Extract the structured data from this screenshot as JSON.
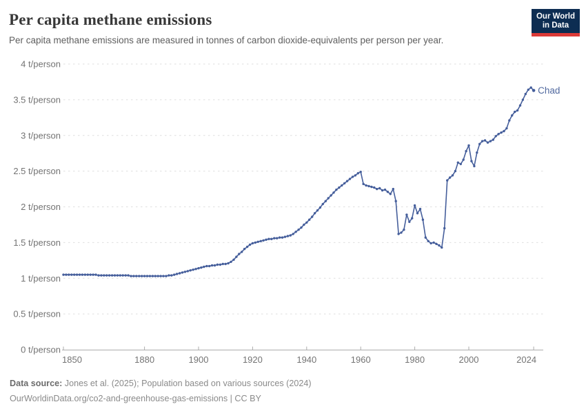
{
  "header": {
    "title": "Per capita methane emissions",
    "subtitle": "Per capita methane emissions are measured in tonnes of carbon dioxide-equivalents per person per year.",
    "logo": {
      "line1": "Our World",
      "line2": "in Data",
      "bg_color": "#0d2d52",
      "bar_color": "#dc3a37"
    }
  },
  "footer": {
    "source_label": "Data source:",
    "source_text": " Jones et al. (2025); Population based on various sources (2024)",
    "url_line": "OurWorldinData.org/co2-and-greenhouse-gas-emissions | CC BY"
  },
  "chart_data": {
    "type": "line",
    "title": "Per capita methane emissions",
    "unit": "t/person",
    "xlabel": "",
    "ylabel": "t/person",
    "xlim": [
      1850,
      2024
    ],
    "ylim": [
      0,
      4
    ],
    "grid": "horizontal dashed",
    "legend_position": "end-of-line label",
    "line_color": "#455e9b",
    "end_label_color": "#51699f",
    "yticks": [
      {
        "value": 0,
        "label": "0 t/person"
      },
      {
        "value": 0.5,
        "label": "0.5 t/person"
      },
      {
        "value": 1,
        "label": "1 t/person"
      },
      {
        "value": 1.5,
        "label": "1.5 t/person"
      },
      {
        "value": 2,
        "label": "2 t/person"
      },
      {
        "value": 2.5,
        "label": "2.5 t/person"
      },
      {
        "value": 3,
        "label": "3 t/person"
      },
      {
        "value": 3.5,
        "label": "3.5 t/person"
      },
      {
        "value": 4,
        "label": "4 t/person"
      }
    ],
    "xticks": [
      {
        "value": 1850,
        "label": "1850"
      },
      {
        "value": 1880,
        "label": "1880"
      },
      {
        "value": 1900,
        "label": "1900"
      },
      {
        "value": 1920,
        "label": "1920"
      },
      {
        "value": 1940,
        "label": "1940"
      },
      {
        "value": 1960,
        "label": "1960"
      },
      {
        "value": 1980,
        "label": "1980"
      },
      {
        "value": 2000,
        "label": "2000"
      },
      {
        "value": 2024,
        "label": "2024"
      }
    ],
    "series": [
      {
        "name": "Chad",
        "years": [
          1850,
          1851,
          1852,
          1853,
          1854,
          1855,
          1856,
          1857,
          1858,
          1859,
          1860,
          1861,
          1862,
          1863,
          1864,
          1865,
          1866,
          1867,
          1868,
          1869,
          1870,
          1871,
          1872,
          1873,
          1874,
          1875,
          1876,
          1877,
          1878,
          1879,
          1880,
          1881,
          1882,
          1883,
          1884,
          1885,
          1886,
          1887,
          1888,
          1889,
          1890,
          1891,
          1892,
          1893,
          1894,
          1895,
          1896,
          1897,
          1898,
          1899,
          1900,
          1901,
          1902,
          1903,
          1904,
          1905,
          1906,
          1907,
          1908,
          1909,
          1910,
          1911,
          1912,
          1913,
          1914,
          1915,
          1916,
          1917,
          1918,
          1919,
          1920,
          1921,
          1922,
          1923,
          1924,
          1925,
          1926,
          1927,
          1928,
          1929,
          1930,
          1931,
          1932,
          1933,
          1934,
          1935,
          1936,
          1937,
          1938,
          1939,
          1940,
          1941,
          1942,
          1943,
          1944,
          1945,
          1946,
          1947,
          1948,
          1949,
          1950,
          1951,
          1952,
          1953,
          1954,
          1955,
          1956,
          1957,
          1958,
          1959,
          1960,
          1961,
          1962,
          1963,
          1964,
          1965,
          1966,
          1967,
          1968,
          1969,
          1970,
          1971,
          1972,
          1973,
          1974,
          1975,
          1976,
          1977,
          1978,
          1979,
          1980,
          1981,
          1982,
          1983,
          1984,
          1985,
          1986,
          1987,
          1988,
          1989,
          1990,
          1991,
          1992,
          1993,
          1994,
          1995,
          1996,
          1997,
          1998,
          1999,
          2000,
          2001,
          2002,
          2003,
          2004,
          2005,
          2006,
          2007,
          2008,
          2009,
          2010,
          2011,
          2012,
          2013,
          2014,
          2015,
          2016,
          2017,
          2018,
          2019,
          2020,
          2021,
          2022,
          2023,
          2024
        ],
        "values": [
          1.05,
          1.05,
          1.05,
          1.05,
          1.05,
          1.05,
          1.05,
          1.05,
          1.05,
          1.05,
          1.05,
          1.05,
          1.05,
          1.04,
          1.04,
          1.04,
          1.04,
          1.04,
          1.04,
          1.04,
          1.04,
          1.04,
          1.04,
          1.04,
          1.04,
          1.03,
          1.03,
          1.03,
          1.03,
          1.03,
          1.03,
          1.03,
          1.03,
          1.03,
          1.03,
          1.03,
          1.03,
          1.03,
          1.03,
          1.04,
          1.04,
          1.05,
          1.06,
          1.07,
          1.08,
          1.09,
          1.1,
          1.11,
          1.12,
          1.13,
          1.14,
          1.15,
          1.16,
          1.17,
          1.17,
          1.18,
          1.18,
          1.19,
          1.19,
          1.2,
          1.2,
          1.21,
          1.23,
          1.26,
          1.3,
          1.34,
          1.37,
          1.41,
          1.44,
          1.47,
          1.49,
          1.5,
          1.51,
          1.52,
          1.53,
          1.54,
          1.55,
          1.55,
          1.56,
          1.56,
          1.57,
          1.57,
          1.58,
          1.59,
          1.6,
          1.62,
          1.65,
          1.68,
          1.71,
          1.75,
          1.78,
          1.82,
          1.86,
          1.91,
          1.95,
          1.99,
          2.04,
          2.08,
          2.12,
          2.16,
          2.2,
          2.24,
          2.27,
          2.3,
          2.33,
          2.36,
          2.39,
          2.42,
          2.44,
          2.47,
          2.49,
          2.32,
          2.3,
          2.29,
          2.28,
          2.27,
          2.25,
          2.26,
          2.23,
          2.24,
          2.21,
          2.18,
          2.25,
          2.08,
          1.62,
          1.64,
          1.68,
          1.89,
          1.79,
          1.84,
          2.02,
          1.91,
          1.97,
          1.82,
          1.57,
          1.52,
          1.49,
          1.5,
          1.48,
          1.46,
          1.43,
          1.7,
          2.37,
          2.41,
          2.44,
          2.5,
          2.62,
          2.6,
          2.66,
          2.78,
          2.86,
          2.64,
          2.57,
          2.76,
          2.88,
          2.92,
          2.93,
          2.9,
          2.92,
          2.94,
          2.99,
          3.02,
          3.04,
          3.06,
          3.1,
          3.21,
          3.28,
          3.33,
          3.35,
          3.42,
          3.5,
          3.58,
          3.64,
          3.67,
          3.63
        ]
      }
    ],
    "end_label": "Chad"
  }
}
